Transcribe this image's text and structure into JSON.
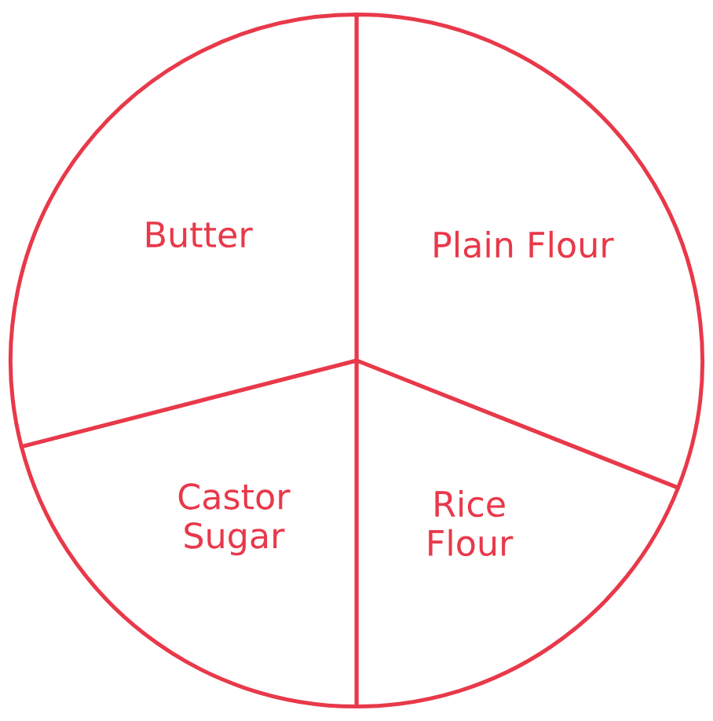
{
  "chart_data": {
    "type": "pie",
    "categories": [
      "Plain Flour",
      "Rice\nFlour",
      "Castor\nSugar",
      "Butter"
    ],
    "values": [
      31,
      19,
      21,
      29
    ],
    "colors": [
      "#ffffff",
      "#ffffff",
      "#ffffff",
      "#ffffff"
    ],
    "legend": false
  }
}
